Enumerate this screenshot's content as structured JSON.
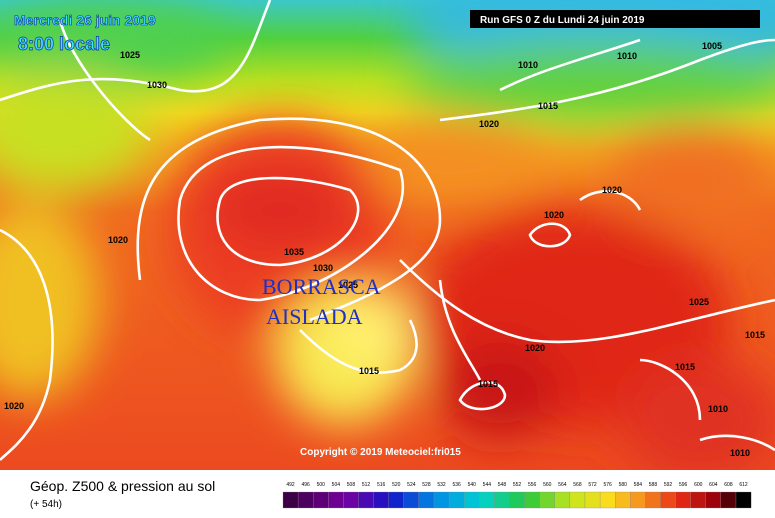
{
  "header": {
    "date": "Mercredi 26 juin 2019",
    "time": "8:00 locale",
    "run": "Run GFS 0 Z du Lundi 24 juin 2019"
  },
  "annotation": [
    "BORRASCA",
    "AISLADA"
  ],
  "isobar_labels": [
    "1025",
    "1030",
    "1010",
    "1010",
    "1005",
    "1015",
    "1020",
    "1020",
    "1020",
    "1020",
    "1035",
    "1030",
    "1025",
    "1025",
    "1015",
    "1020",
    "1015",
    "1015",
    "1015",
    "1010",
    "1020",
    "1010"
  ],
  "copyright": "Copyright © 2019 Meteociel:fri015",
  "footer": {
    "title": "Géop. Z500 & pression au sol",
    "lead": "(+ 54h)"
  },
  "legend": {
    "values": [
      492,
      496,
      500,
      504,
      508,
      512,
      516,
      520,
      524,
      528,
      532,
      536,
      540,
      544,
      548,
      552,
      556,
      560,
      564,
      568,
      572,
      576,
      580,
      584,
      588,
      592,
      596,
      600,
      604,
      608,
      612
    ]
  }
}
